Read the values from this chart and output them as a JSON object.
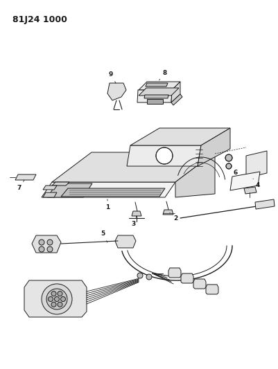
{
  "title": "81J24 1000",
  "bg_color": "#ffffff",
  "line_color": "#1a1a1a",
  "lw": 0.7,
  "label_fontsize": 6.5
}
